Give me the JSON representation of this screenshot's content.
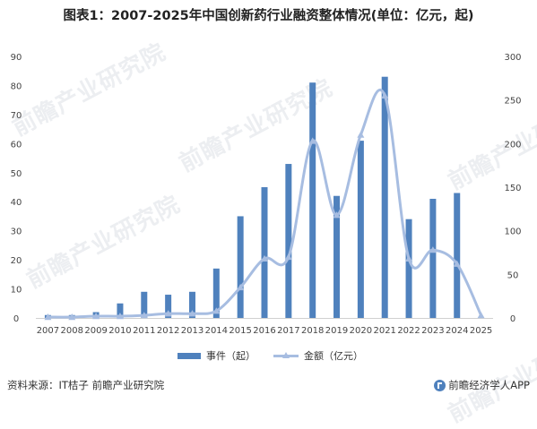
{
  "title": "图表1：2007-2025年中国创新药行业融资整体情况(单位：亿元，起)",
  "footer": {
    "source": "资料来源：IT桔子 前瞻产业研究院",
    "brand": "前瞻经济学人APP"
  },
  "watermark_text": "前瞻产业研究院",
  "colors": {
    "bar": "#4f81bd",
    "line": "#a7bde1"
  },
  "chart_data": {
    "type": "bar",
    "categories": [
      "2007",
      "2008",
      "2009",
      "2010",
      "2011",
      "2012",
      "2013",
      "2014",
      "2015",
      "2016",
      "2017",
      "2018",
      "2019",
      "2020",
      "2021",
      "2022",
      "2023",
      "2024",
      "2025"
    ],
    "series": [
      {
        "name": "事件（起）",
        "type": "bar",
        "axis": "left",
        "values": [
          1,
          1,
          2,
          5,
          9,
          8,
          9,
          17,
          35,
          45,
          53,
          81,
          42,
          61,
          83,
          34,
          41,
          43,
          0
        ]
      },
      {
        "name": "金额（亿元）",
        "type": "line",
        "axis": "right",
        "marker": "triangle",
        "values": [
          1,
          1,
          2,
          2,
          3,
          5,
          5,
          8,
          35,
          68,
          70,
          203,
          118,
          210,
          255,
          68,
          78,
          62,
          3
        ]
      }
    ],
    "y_left": {
      "range": [
        0,
        90
      ],
      "ticks": [
        0,
        10,
        20,
        30,
        40,
        50,
        60,
        70,
        80,
        90
      ]
    },
    "y_right": {
      "range": [
        0,
        300
      ],
      "ticks": [
        0,
        50,
        100,
        150,
        200,
        250,
        300
      ]
    },
    "legend": "bottom",
    "grid": false
  }
}
